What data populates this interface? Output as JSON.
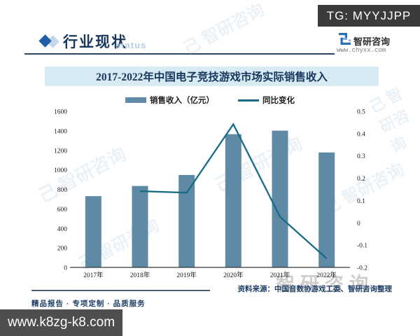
{
  "overlay": {
    "tg_label": "TG: MYYJJPP",
    "site_label": "www.k8zg-k8.com"
  },
  "header": {
    "section_title": "行业现状",
    "section_watermark": "status"
  },
  "brand": {
    "name": "智研咨询",
    "url": "www.chyxx.com",
    "glyph": "己"
  },
  "colors": {
    "bar": "#5f8aa5",
    "line": "#176b85",
    "banner_bg": "#d8eaf4",
    "navy_text": "#16365c",
    "badge_bg": "#3b3b3b"
  },
  "chart_data": {
    "type": "bar",
    "title": "2017-2022年中国电子竞技游戏市场实际销售收入",
    "categories": [
      "2017年",
      "2018年",
      "2019年",
      "2020年",
      "2021年",
      "2022年"
    ],
    "series": [
      {
        "name": "销售收入（亿元）",
        "kind": "bar",
        "axis": "left",
        "values": [
          730.5,
          834.7,
          947.3,
          1365.6,
          1401.8,
          1178.0
        ],
        "color": "#5f8aa5"
      },
      {
        "name": "同比变化",
        "kind": "line",
        "axis": "right",
        "values": [
          null,
          0.142,
          0.135,
          0.442,
          0.027,
          -0.16
        ],
        "color": "#176b85"
      }
    ],
    "left_axis": {
      "min": 0,
      "max": 1600,
      "step": 200
    },
    "right_axis": {
      "min": -0.2,
      "max": 0.5,
      "step": 0.1
    },
    "legend_position": "top",
    "grid": false
  },
  "footer": {
    "source": "资料来源：中国音数协游戏工委、智研咨询整理",
    "services": "精品报告 · 专项定制 · 品质服务",
    "watermark": "智研咨询"
  }
}
